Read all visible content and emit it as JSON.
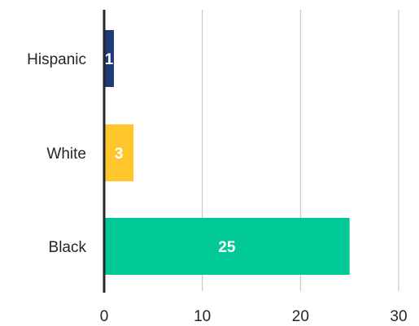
{
  "chart_data": {
    "type": "bar",
    "orientation": "horizontal",
    "categories": [
      "Hispanic",
      "White",
      "Black"
    ],
    "values": [
      1,
      3,
      25
    ],
    "data_labels": [
      "1",
      "3",
      "25"
    ],
    "colors": [
      "#1f3a7a",
      "#ffc72c",
      "#00c896"
    ],
    "xlim": [
      0,
      30
    ],
    "xticks": [
      0,
      10,
      20,
      30
    ],
    "xtick_labels": [
      "0",
      "10",
      "20",
      "30"
    ],
    "grid": "vertical",
    "axis_color": "#262626",
    "grid_color": "#bfbfbf",
    "legend": "none",
    "title": "",
    "xlabel": "",
    "ylabel": ""
  }
}
